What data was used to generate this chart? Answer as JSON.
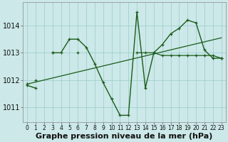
{
  "xlabel": "Graphe pression niveau de la mer (hPa)",
  "background_color": "#cce8e8",
  "grid_color": "#99cccc",
  "line_color": "#1a5c1a",
  "x_values": [
    0,
    1,
    2,
    3,
    4,
    5,
    6,
    7,
    8,
    9,
    10,
    11,
    12,
    13,
    14,
    15,
    16,
    17,
    18,
    19,
    20,
    21,
    22,
    23
  ],
  "series_main": [
    1011.8,
    1011.7,
    null,
    1013.0,
    1013.0,
    1013.5,
    1013.5,
    1013.2,
    1012.6,
    1011.9,
    1011.3,
    1010.7,
    1010.7,
    1014.5,
    1011.7,
    1013.0,
    1013.3,
    1013.7,
    1013.9,
    1014.2,
    1014.1,
    1013.1,
    1012.8,
    1012.8
  ],
  "series_flat": [
    1011.85,
    null,
    null,
    1013.0,
    null,
    null,
    1013.0,
    null,
    null,
    null,
    null,
    null,
    null,
    1013.0,
    1013.0,
    1013.0,
    1012.9,
    1012.9,
    1012.9,
    1012.9,
    1012.9,
    1012.9,
    1012.9,
    1012.8
  ],
  "series_short": [
    null,
    1012.0,
    null,
    null,
    null,
    null,
    null,
    null,
    null,
    null,
    null,
    null,
    null,
    null,
    null,
    null,
    null,
    null,
    null,
    null,
    null,
    null,
    null,
    null
  ],
  "trend_x": [
    0,
    23
  ],
  "trend_y": [
    1011.85,
    1013.55
  ],
  "ylim": [
    1010.45,
    1014.85
  ],
  "yticks": [
    1011,
    1012,
    1013,
    1014
  ],
  "xticks": [
    0,
    1,
    2,
    3,
    4,
    5,
    6,
    7,
    8,
    9,
    10,
    11,
    12,
    13,
    14,
    15,
    16,
    17,
    18,
    19,
    20,
    21,
    22,
    23
  ],
  "xlabel_fontsize": 8,
  "ytick_fontsize": 7,
  "xtick_fontsize": 5.5
}
